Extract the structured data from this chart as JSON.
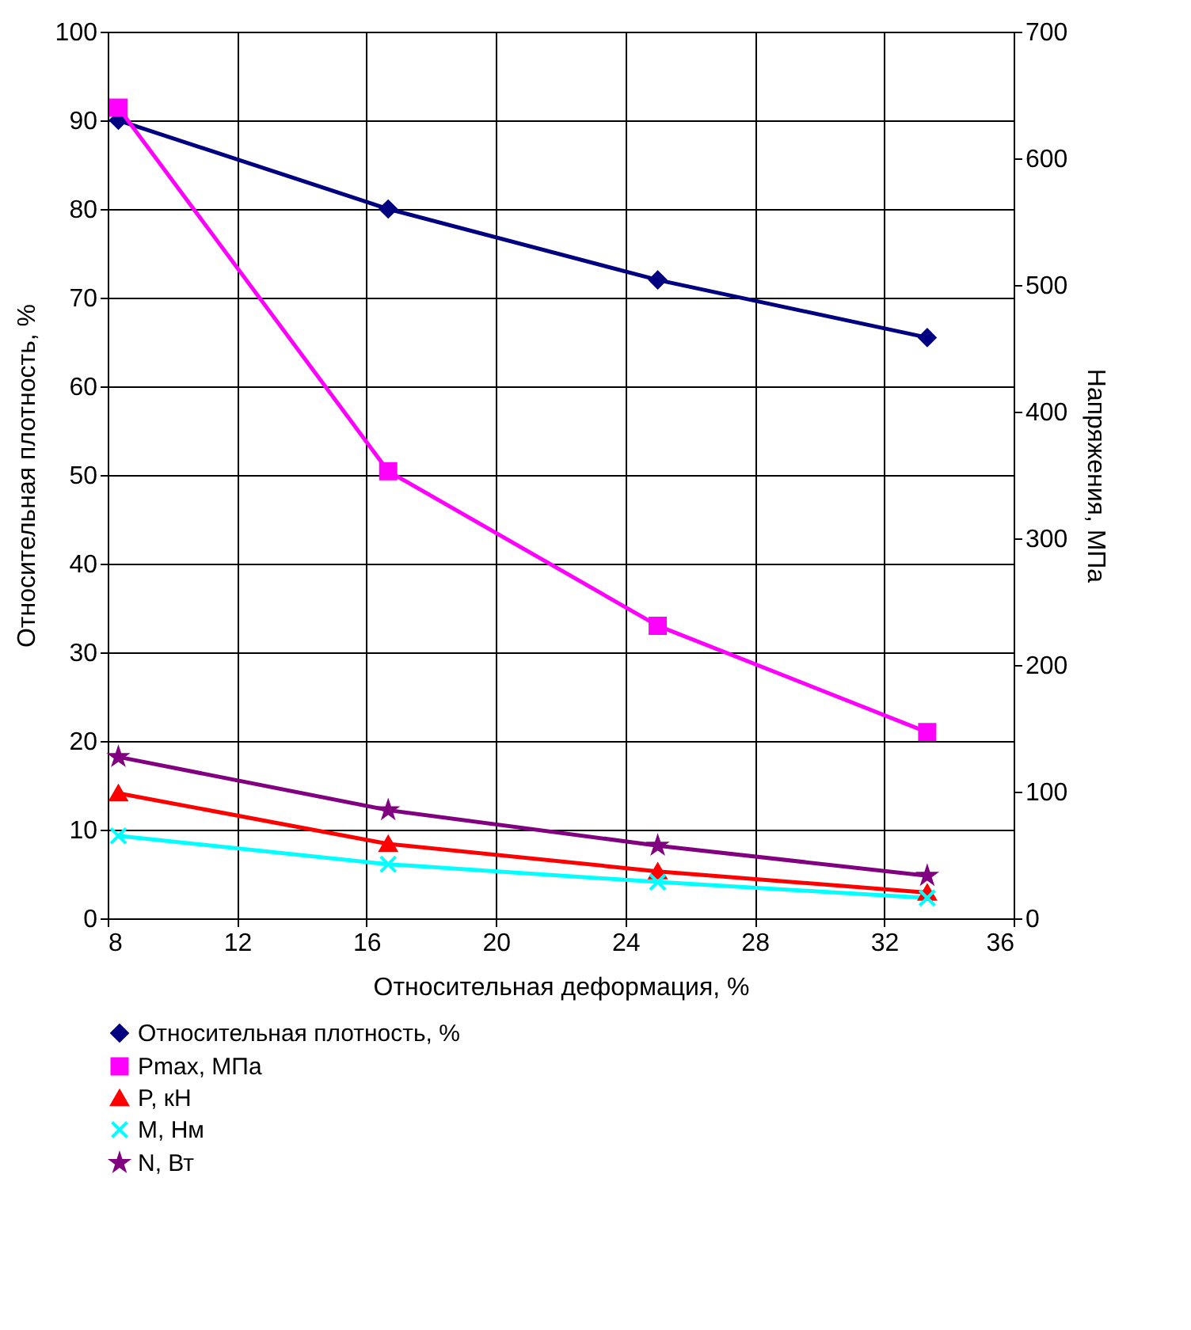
{
  "chart_data": {
    "type": "line",
    "xlabel": "Относительная деформация, %",
    "ylabel": "Относительная плотность, %",
    "y2label": "Напряжения, МПа",
    "x": [
      8.33,
      16.67,
      25,
      33.33
    ],
    "xlim": [
      8,
      36
    ],
    "xticks": [
      8,
      12,
      16,
      20,
      24,
      28,
      32,
      36
    ],
    "ylim": [
      0,
      100
    ],
    "yticks": [
      0,
      10,
      20,
      30,
      40,
      50,
      60,
      70,
      80,
      90,
      100
    ],
    "y2lim": [
      0,
      700
    ],
    "y2ticks": [
      0,
      100,
      200,
      300,
      400,
      500,
      600,
      700
    ],
    "grid": true,
    "legend": "bottom",
    "series": [
      {
        "name": "Относительная плотность, %",
        "color": "#000080",
        "marker": "diamond",
        "values": [
          90,
          80,
          72,
          65.5
        ]
      },
      {
        "name": "Pmax, МПа",
        "color": "#ff00ff",
        "marker": "square",
        "axis": "y2",
        "values": [
          640,
          353,
          231,
          147
        ]
      },
      {
        "name": "P, кН",
        "color": "#ff0000",
        "marker": "triangle",
        "values": [
          14.1,
          8.4,
          5.3,
          2.9
        ]
      },
      {
        "name": "M, Нм",
        "color": "#00ffff",
        "marker": "cross",
        "values": [
          9.3,
          6.1,
          4.1,
          2.3
        ]
      },
      {
        "name": "N, Вт",
        "color": "#800080",
        "marker": "star",
        "values": [
          18.2,
          12.2,
          8.2,
          4.8
        ]
      }
    ]
  }
}
